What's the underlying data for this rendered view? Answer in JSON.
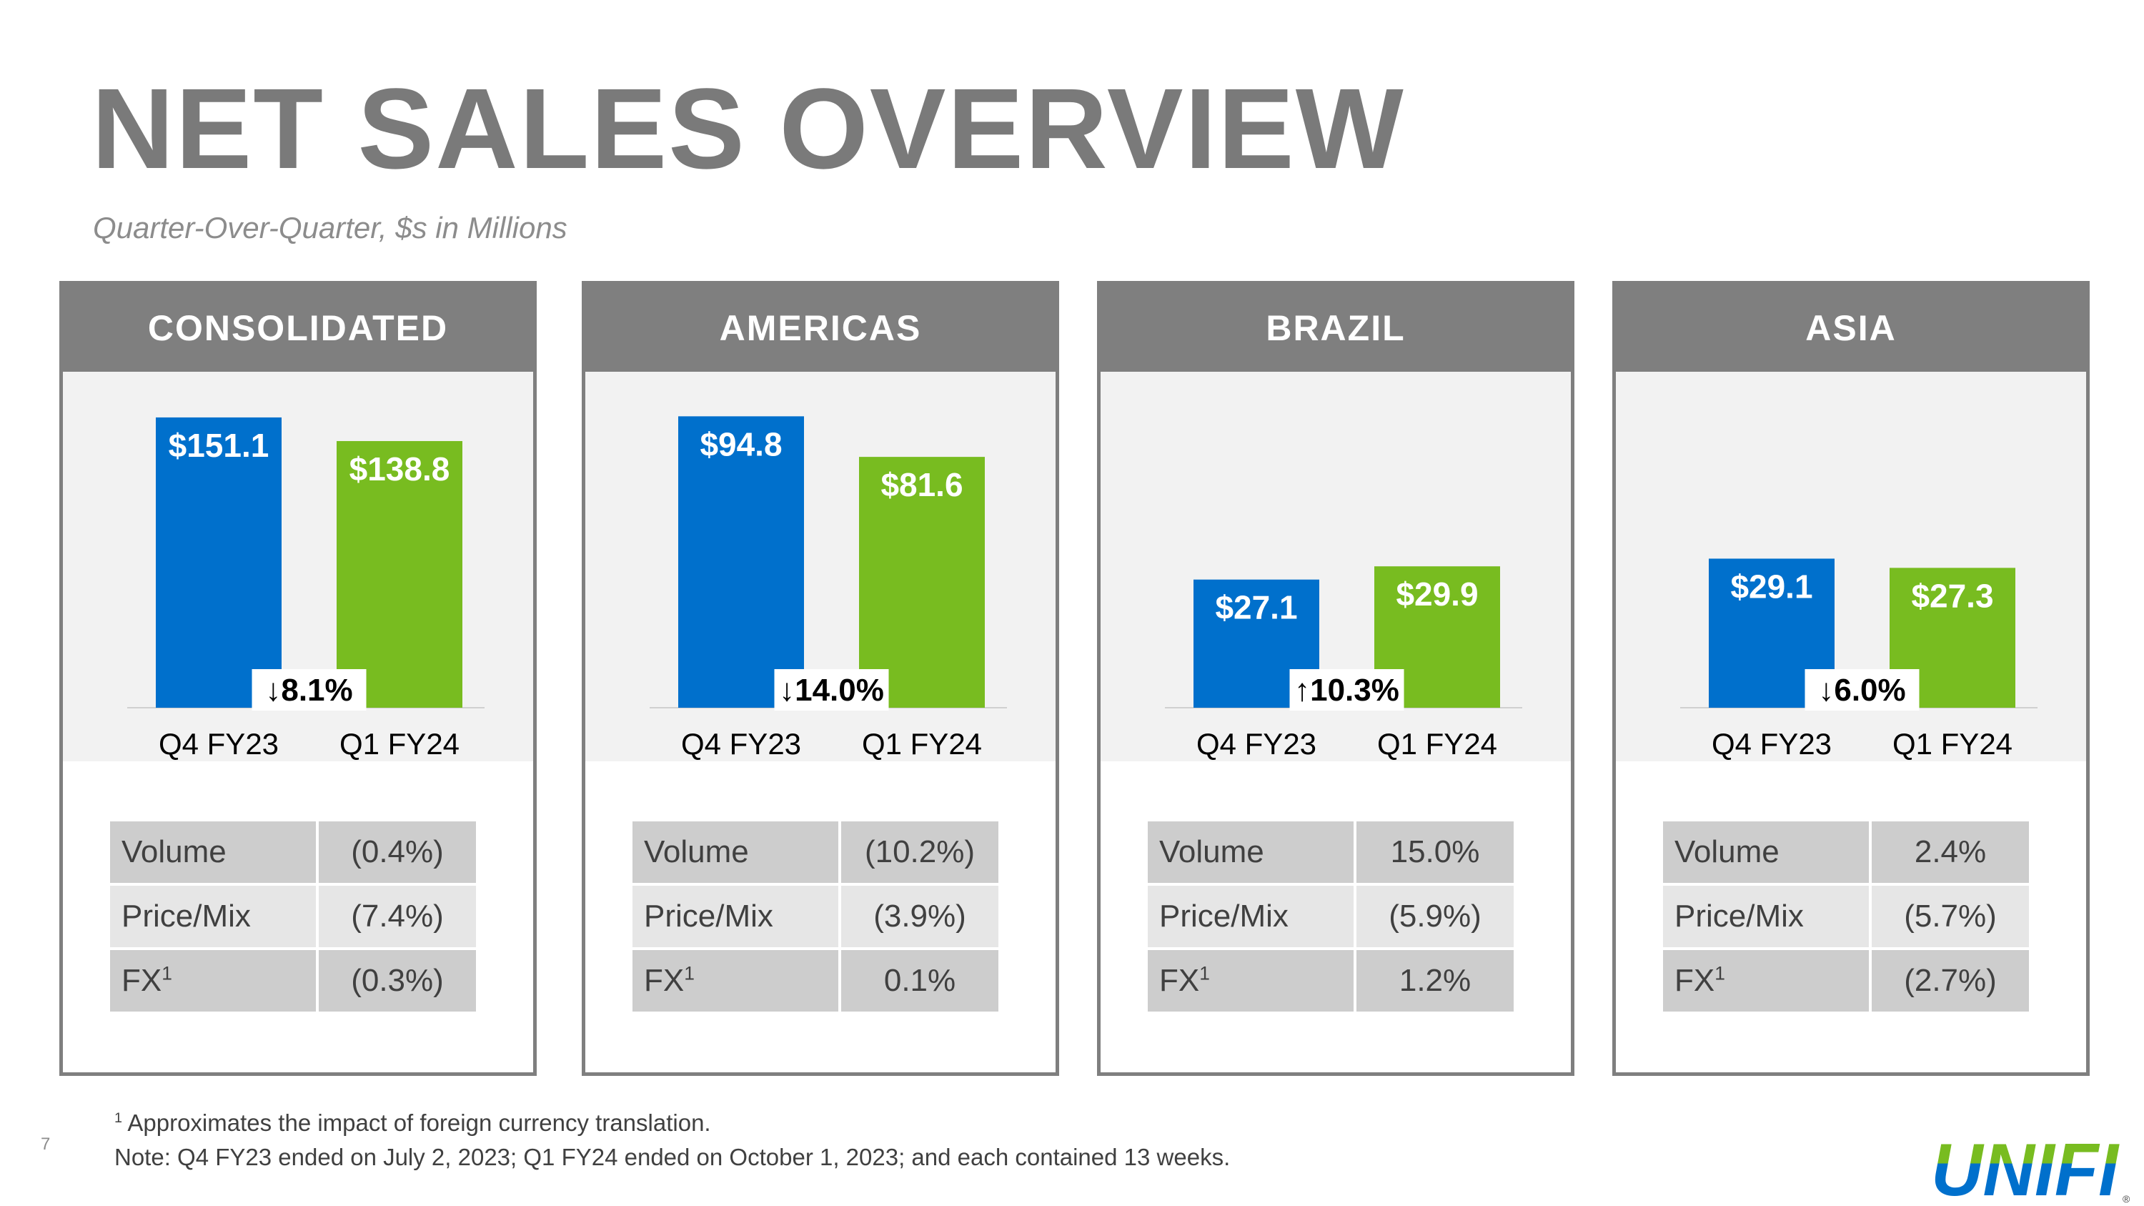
{
  "header": {
    "title": "NET SALES OVERVIEW",
    "subtitle": "Quarter-Over-Quarter, $s in Millions"
  },
  "colors": {
    "q4_bar": "#0070cc",
    "q1_bar": "#78bc20",
    "panel_header": "#7f7f7f",
    "title": "#7a7a7a"
  },
  "chart_data": [
    {
      "type": "bar",
      "title": "CONSOLIDATED",
      "categories": [
        "Q4 FY23",
        "Q1 FY24"
      ],
      "values": [
        151.1,
        138.8
      ],
      "data_labels": [
        "$151.1",
        "$138.8"
      ],
      "change_label": "↓8.1%",
      "ylim": [
        0,
        160
      ]
    },
    {
      "type": "bar",
      "title": "AMERICAS",
      "categories": [
        "Q4 FY23",
        "Q1 FY24"
      ],
      "values": [
        94.8,
        81.6
      ],
      "data_labels": [
        "$94.8",
        "$81.6"
      ],
      "change_label": "↓14.0%",
      "ylim": [
        0,
        100
      ]
    },
    {
      "type": "bar",
      "title": "BRAZIL",
      "categories": [
        "Q4 FY23",
        "Q1 FY24"
      ],
      "values": [
        27.1,
        29.9
      ],
      "data_labels": [
        "$27.1",
        "$29.9"
      ],
      "change_label": "↑10.3%",
      "ylim": [
        0,
        65
      ]
    },
    {
      "type": "bar",
      "title": "ASIA",
      "categories": [
        "Q4 FY23",
        "Q1 FY24"
      ],
      "values": [
        29.1,
        27.3
      ],
      "data_labels": [
        "$29.1",
        "$27.3"
      ],
      "change_label": "↓6.0%",
      "ylim": [
        0,
        60
      ]
    }
  ],
  "tables": [
    {
      "rows": [
        {
          "label": "Volume",
          "value": "(0.4%)"
        },
        {
          "label": "Price/Mix",
          "value": "(7.4%)"
        },
        {
          "label": "FX",
          "sup": "1",
          "value": "(0.3%)"
        }
      ]
    },
    {
      "rows": [
        {
          "label": "Volume",
          "value": "(10.2%)"
        },
        {
          "label": "Price/Mix",
          "value": "(3.9%)"
        },
        {
          "label": "FX",
          "sup": "1",
          "value": "0.1%"
        }
      ]
    },
    {
      "rows": [
        {
          "label": "Volume",
          "value": "15.0%"
        },
        {
          "label": "Price/Mix",
          "value": "(5.9%)"
        },
        {
          "label": "FX",
          "sup": "1",
          "value": "1.2%"
        }
      ]
    },
    {
      "rows": [
        {
          "label": "Volume",
          "value": "2.4%"
        },
        {
          "label": "Price/Mix",
          "value": "(5.7%)"
        },
        {
          "label": "FX",
          "sup": "1",
          "value": "(2.7%)"
        }
      ]
    }
  ],
  "footer": {
    "page_number": "7",
    "footnote_mark": "1",
    "footnote_text": "Approximates the impact of foreign currency translation.",
    "note": "Note: Q4 FY23 ended on July 2, 2023; Q1 FY24 ended on October 1, 2023; and each contained 13 weeks."
  },
  "logo": {
    "text": "UNIFI",
    "mark": "®",
    "color_top": "#78bc20",
    "color_bottom": "#0070cc"
  }
}
